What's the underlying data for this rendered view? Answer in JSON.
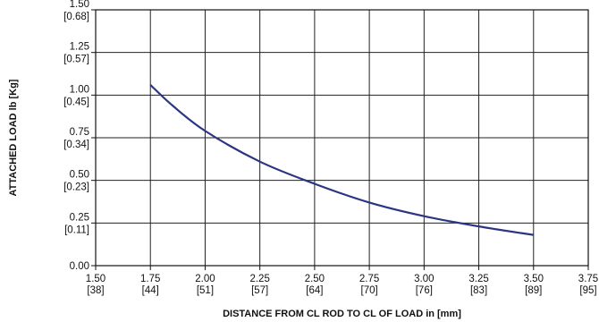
{
  "chart_data": {
    "type": "line",
    "title": "",
    "xlabel": "DISTANCE FROM CL ROD TO CL OF LOAD in [mm]",
    "ylabel": "ATTACHED LOAD lb [Kg]",
    "xlim": [
      1.5,
      3.75
    ],
    "ylim": [
      0,
      1.5
    ],
    "grid": true,
    "x_ticks": [
      {
        "value": 1.5,
        "label": "1.50",
        "sub": "[38]"
      },
      {
        "value": 1.75,
        "label": "1.75",
        "sub": "[44]"
      },
      {
        "value": 2.0,
        "label": "2.00",
        "sub": "[51]"
      },
      {
        "value": 2.25,
        "label": "2.25",
        "sub": "[57]"
      },
      {
        "value": 2.5,
        "label": "2.50",
        "sub": "[64]"
      },
      {
        "value": 2.75,
        "label": "2.75",
        "sub": "[70]"
      },
      {
        "value": 3.0,
        "label": "3.00",
        "sub": "[76]"
      },
      {
        "value": 3.25,
        "label": "3.25",
        "sub": "[83]"
      },
      {
        "value": 3.5,
        "label": "3.50",
        "sub": "[89]"
      },
      {
        "value": 3.75,
        "label": "3.75",
        "sub": "[95]"
      }
    ],
    "y_ticks": [
      {
        "value": 0.0,
        "label": "0.00",
        "sub": ""
      },
      {
        "value": 0.25,
        "label": "0.25",
        "sub": "[0.11]"
      },
      {
        "value": 0.5,
        "label": "0.50",
        "sub": "[0.23]"
      },
      {
        "value": 0.75,
        "label": "0.75",
        "sub": "[0.34]"
      },
      {
        "value": 1.0,
        "label": "1.00",
        "sub": "[0.45]"
      },
      {
        "value": 1.25,
        "label": "1.25",
        "sub": "[0.57]"
      },
      {
        "value": 1.5,
        "label": "1.50",
        "sub": "[0.68]"
      }
    ],
    "series": [
      {
        "color": "#2b3582",
        "x": [
          1.75,
          1.85,
          2.0,
          2.25,
          2.5,
          2.75,
          3.0,
          3.25,
          3.5
        ],
        "y": [
          1.06,
          0.94,
          0.79,
          0.61,
          0.48,
          0.37,
          0.29,
          0.23,
          0.18
        ]
      }
    ]
  }
}
